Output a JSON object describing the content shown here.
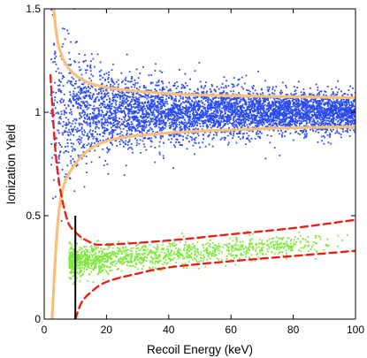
{
  "chart_data": {
    "type": "scatter",
    "xlabel": "Recoil Energy (keV)",
    "ylabel": "Ionization Yield",
    "xlim": [
      0,
      100
    ],
    "ylim": [
      0,
      1.5
    ],
    "x_ticks": [
      0,
      20,
      40,
      60,
      80,
      100
    ],
    "y_ticks": [
      0,
      0.5,
      1,
      1.5
    ],
    "x_tick_labels": [
      "0",
      "20",
      "40",
      "60",
      "80",
      "100"
    ],
    "y_tick_labels": [
      "0",
      "0.5",
      "1",
      "1.5"
    ],
    "grid": false,
    "legend": "none",
    "series": [
      {
        "kind": "points",
        "color": "#2b4cf0",
        "x_range": [
          2,
          100
        ],
        "y_center": 1.0,
        "y_spread_at_100keV": 0.045,
        "approx_point_count": 5000
      },
      {
        "kind": "points",
        "color": "#7de83a",
        "x_range": [
          8,
          100
        ],
        "y_center_at_10keV": 0.28,
        "y_center_at_100keV": 0.38,
        "approx_point_count": 1300
      },
      {
        "kind": "band-edges",
        "color": "#f8c07a",
        "style": "solid",
        "upper": [
          [
            3,
            1.5
          ],
          [
            5,
            1.3
          ],
          [
            10,
            1.18
          ],
          [
            20,
            1.12
          ],
          [
            40,
            1.09
          ],
          [
            60,
            1.08
          ],
          [
            80,
            1.075
          ],
          [
            100,
            1.07
          ]
        ],
        "lower": [
          [
            2.5,
            0
          ],
          [
            5,
            0.55
          ],
          [
            10,
            0.75
          ],
          [
            20,
            0.86
          ],
          [
            40,
            0.9
          ],
          [
            60,
            0.915
          ],
          [
            80,
            0.925
          ],
          [
            100,
            0.93
          ]
        ]
      },
      {
        "kind": "band-edges",
        "color": "#e8201a",
        "style": "dashed",
        "upper": [
          [
            2,
            1.18
          ],
          [
            4,
            0.75
          ],
          [
            7,
            0.5
          ],
          [
            10,
            0.42
          ],
          [
            15,
            0.37
          ],
          [
            20,
            0.36
          ],
          [
            40,
            0.38
          ],
          [
            60,
            0.41
          ],
          [
            80,
            0.44
          ],
          [
            100,
            0.48
          ]
        ],
        "lower": [
          [
            10,
            0
          ],
          [
            12,
            0.08
          ],
          [
            15,
            0.13
          ],
          [
            20,
            0.18
          ],
          [
            30,
            0.22
          ],
          [
            40,
            0.25
          ],
          [
            60,
            0.28
          ],
          [
            80,
            0.305
          ],
          [
            100,
            0.33
          ]
        ]
      },
      {
        "kind": "threshold-line",
        "color": "#000000",
        "x": 10,
        "y_range": [
          0,
          0.5
        ]
      }
    ]
  }
}
